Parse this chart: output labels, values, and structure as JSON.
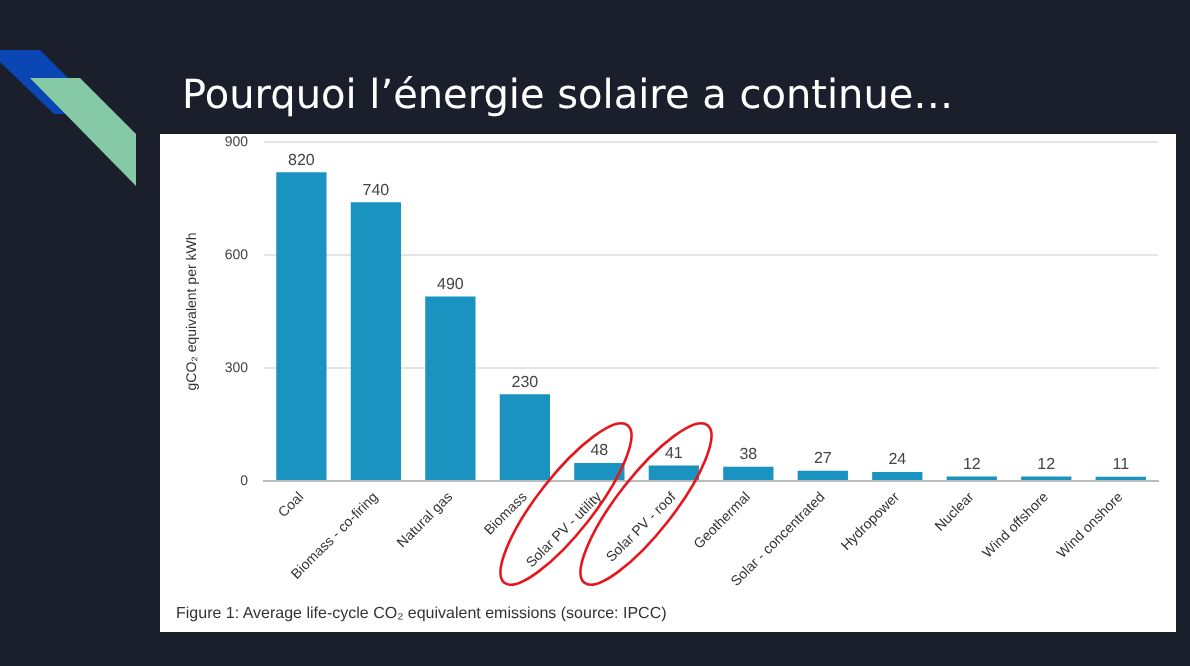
{
  "chart_data": {
    "type": "bar",
    "title": "Pourquoi l’énergie solaire a continue…",
    "ylabel": "gCO₂ equivalent per kWh",
    "categories": [
      "Coal",
      "Biomass - co-firing",
      "Natural gas",
      "Biomass",
      "Solar PV - utility",
      "Solar PV - roof",
      "Geothermal",
      "Solar - concentrated",
      "Hydropower",
      "Nuclear",
      "Wind offshore",
      "Wind onshore"
    ],
    "values": [
      820,
      740,
      490,
      230,
      48,
      41,
      38,
      27,
      24,
      12,
      12,
      11
    ],
    "color": "#1a93c0",
    "ylim": [
      0,
      900
    ],
    "yticks": [
      0,
      300,
      600,
      900
    ],
    "grid": "y",
    "data_labels": true,
    "annotations": [
      "Figure 1: Average life-cycle CO₂ equivalent emissions (source: IPCC)"
    ]
  }
}
